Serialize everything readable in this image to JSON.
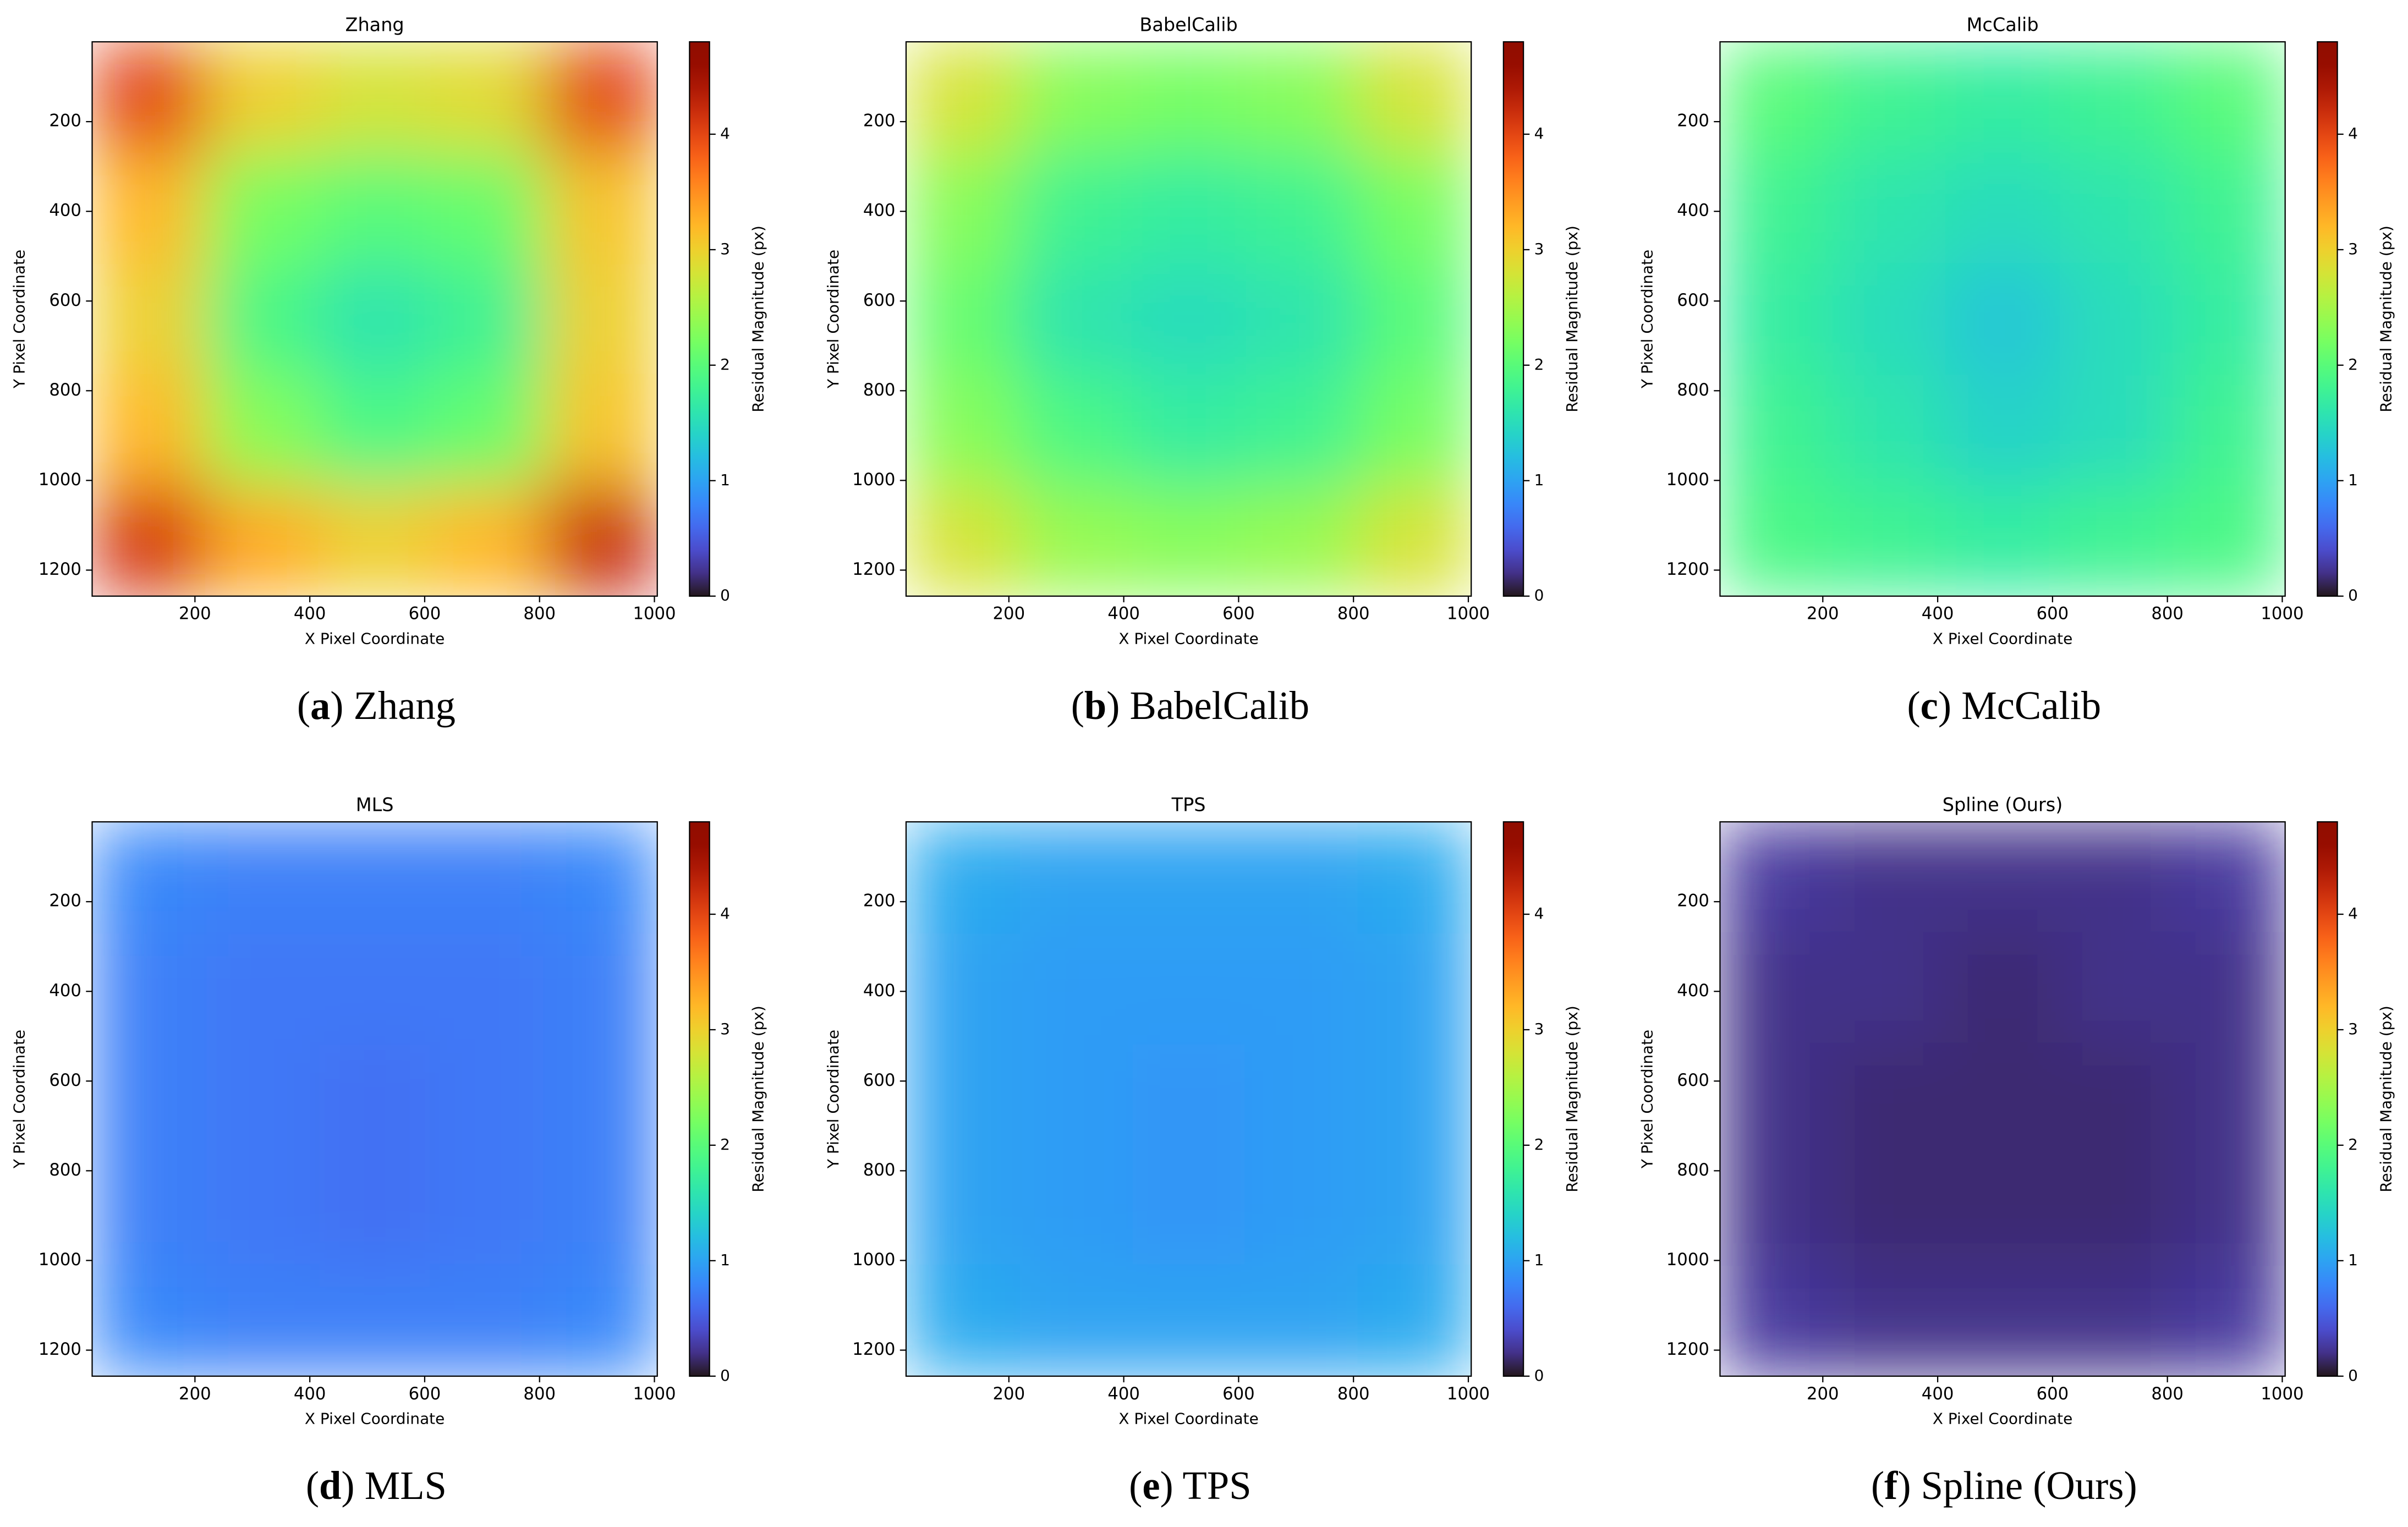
{
  "chart_data": [
    {
      "type": "heatmap",
      "title": "Zhang",
      "xlabel": "X Pixel Coordinate",
      "ylabel": "Y Pixel Coordinate",
      "colorbar_label": "Residual Magnitude (px)",
      "caption_parts": [
        "(",
        "a",
        ") Zhang"
      ],
      "xlim": [
        21,
        1005
      ],
      "ylim": [
        22,
        1258
      ],
      "y_inverted": true,
      "xticks": [
        200,
        400,
        600,
        800,
        1000
      ],
      "yticks": [
        200,
        400,
        600,
        800,
        1000,
        1200
      ],
      "clim": [
        0,
        4.8
      ],
      "cticks": [
        0,
        1,
        2,
        3,
        4
      ],
      "colormap": "turbo",
      "x": [
        119,
        316,
        513,
        710,
        907
      ],
      "y": [
        146,
        393,
        640,
        887,
        1134
      ],
      "z": [
        [
          4.0,
          3.0,
          2.8,
          2.9,
          4.0
        ],
        [
          3.2,
          2.2,
          2.0,
          2.1,
          3.1
        ],
        [
          3.0,
          1.9,
          1.6,
          1.8,
          3.0
        ],
        [
          3.2,
          2.3,
          1.9,
          2.1,
          3.1
        ],
        [
          4.1,
          3.3,
          3.0,
          3.2,
          4.2
        ]
      ]
    },
    {
      "type": "heatmap",
      "title": "BabelCalib",
      "xlabel": "X Pixel Coordinate",
      "ylabel": "Y Pixel Coordinate",
      "colorbar_label": "Residual Magnitude (px)",
      "caption_parts": [
        "(",
        "b",
        ") BabelCalib"
      ],
      "xlim": [
        21,
        1005
      ],
      "ylim": [
        22,
        1258
      ],
      "y_inverted": true,
      "xticks": [
        200,
        400,
        600,
        800,
        1000
      ],
      "yticks": [
        200,
        400,
        600,
        800,
        1000,
        1200
      ],
      "clim": [
        0,
        4.8
      ],
      "cticks": [
        0,
        1,
        2,
        3,
        4
      ],
      "colormap": "turbo",
      "x": [
        119,
        316,
        513,
        710,
        907
      ],
      "y": [
        146,
        393,
        640,
        887,
        1134
      ],
      "z": [
        [
          2.8,
          2.3,
          2.2,
          2.3,
          2.8
        ],
        [
          2.3,
          1.8,
          1.7,
          1.8,
          2.2
        ],
        [
          2.1,
          1.6,
          1.5,
          1.6,
          2.0
        ],
        [
          2.3,
          1.9,
          1.7,
          1.8,
          2.2
        ],
        [
          2.8,
          2.4,
          2.3,
          2.4,
          2.8
        ]
      ]
    },
    {
      "type": "heatmap",
      "title": "McCalib",
      "xlabel": "X Pixel Coordinate",
      "ylabel": "Y Pixel Coordinate",
      "colorbar_label": "Residual Magnitude (px)",
      "caption_parts": [
        "(",
        "c",
        ") McCalib"
      ],
      "xlim": [
        21,
        1005
      ],
      "ylim": [
        22,
        1258
      ],
      "y_inverted": true,
      "xticks": [
        200,
        400,
        600,
        800,
        1000
      ],
      "yticks": [
        200,
        400,
        600,
        800,
        1000,
        1200
      ],
      "clim": [
        0,
        4.8
      ],
      "cticks": [
        0,
        1,
        2,
        3,
        4
      ],
      "colormap": "turbo",
      "x": [
        119,
        316,
        513,
        710,
        907
      ],
      "y": [
        146,
        393,
        640,
        887,
        1134
      ],
      "z": [
        [
          2.0,
          1.8,
          1.7,
          1.8,
          2.0
        ],
        [
          1.8,
          1.6,
          1.5,
          1.6,
          1.8
        ],
        [
          1.7,
          1.5,
          1.3,
          1.5,
          1.7
        ],
        [
          1.8,
          1.6,
          1.4,
          1.5,
          1.8
        ],
        [
          1.9,
          1.8,
          1.7,
          1.8,
          1.9
        ]
      ]
    },
    {
      "type": "heatmap",
      "title": "MLS",
      "xlabel": "X Pixel Coordinate",
      "ylabel": "Y Pixel Coordinate",
      "colorbar_label": "Residual Magnitude (px)",
      "caption_parts": [
        "(",
        "d",
        ") MLS"
      ],
      "xlim": [
        21,
        1005
      ],
      "ylim": [
        22,
        1258
      ],
      "y_inverted": true,
      "xticks": [
        200,
        400,
        600,
        800,
        1000
      ],
      "yticks": [
        200,
        400,
        600,
        800,
        1000,
        1200
      ],
      "clim": [
        0,
        4.8
      ],
      "cticks": [
        0,
        1,
        2,
        3,
        4
      ],
      "colormap": "turbo",
      "x": [
        119,
        316,
        513,
        710,
        907
      ],
      "y": [
        146,
        393,
        640,
        887,
        1134
      ],
      "z": [
        [
          0.8,
          0.75,
          0.75,
          0.75,
          0.8
        ],
        [
          0.75,
          0.7,
          0.7,
          0.7,
          0.75
        ],
        [
          0.75,
          0.7,
          0.65,
          0.7,
          0.75
        ],
        [
          0.75,
          0.7,
          0.65,
          0.7,
          0.75
        ],
        [
          0.8,
          0.75,
          0.75,
          0.75,
          0.8
        ]
      ]
    },
    {
      "type": "heatmap",
      "title": "TPS",
      "xlabel": "X Pixel Coordinate",
      "ylabel": "Y Pixel Coordinate",
      "colorbar_label": "Residual Magnitude (px)",
      "caption_parts": [
        "(",
        "e",
        ") TPS"
      ],
      "xlim": [
        21,
        1005
      ],
      "ylim": [
        22,
        1258
      ],
      "y_inverted": true,
      "xticks": [
        200,
        400,
        600,
        800,
        1000
      ],
      "yticks": [
        200,
        400,
        600,
        800,
        1000,
        1200
      ],
      "clim": [
        0,
        4.8
      ],
      "cticks": [
        0,
        1,
        2,
        3,
        4
      ],
      "colormap": "turbo",
      "x": [
        119,
        316,
        513,
        710,
        907
      ],
      "y": [
        146,
        393,
        640,
        887,
        1134
      ],
      "z": [
        [
          1.05,
          1.0,
          1.0,
          1.0,
          1.05
        ],
        [
          1.0,
          0.95,
          0.95,
          0.95,
          1.0
        ],
        [
          1.0,
          0.95,
          0.9,
          0.95,
          1.0
        ],
        [
          1.0,
          0.95,
          0.9,
          0.95,
          1.0
        ],
        [
          1.05,
          1.0,
          1.0,
          1.0,
          1.05
        ]
      ]
    },
    {
      "type": "heatmap",
      "title": "Spline (Ours)",
      "xlabel": "X Pixel Coordinate",
      "ylabel": "Y Pixel Coordinate",
      "colorbar_label": "Residual Magnitude (px)",
      "caption_parts": [
        "(",
        "f",
        ") Spline (Ours)"
      ],
      "xlim": [
        21,
        1005
      ],
      "ylim": [
        22,
        1258
      ],
      "y_inverted": true,
      "xticks": [
        200,
        400,
        600,
        800,
        1000
      ],
      "yticks": [
        200,
        400,
        600,
        800,
        1000,
        1200
      ],
      "clim": [
        0,
        4.8
      ],
      "cticks": [
        0,
        1,
        2,
        3,
        4
      ],
      "colormap": "turbo",
      "x": [
        119,
        316,
        513,
        710,
        907
      ],
      "y": [
        146,
        393,
        640,
        887,
        1134
      ],
      "z": [
        [
          0.25,
          0.2,
          0.2,
          0.2,
          0.25
        ],
        [
          0.2,
          0.2,
          0.15,
          0.2,
          0.2
        ],
        [
          0.2,
          0.15,
          0.15,
          0.15,
          0.2
        ],
        [
          0.2,
          0.15,
          0.15,
          0.15,
          0.2
        ],
        [
          0.25,
          0.2,
          0.2,
          0.2,
          0.25
        ]
      ]
    }
  ]
}
